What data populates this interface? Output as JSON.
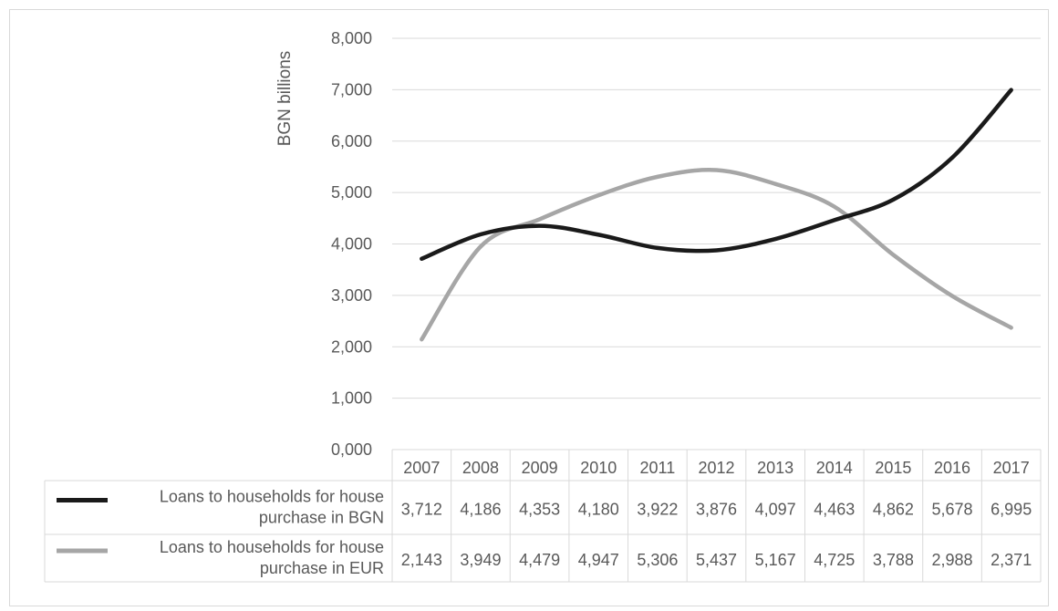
{
  "chart_data": {
    "type": "line",
    "title": "",
    "ylabel": "BGN billions",
    "xlabel": "",
    "ylim": [
      0,
      8000
    ],
    "ytick_step": 1000,
    "ytick_labels": [
      "0,000",
      "1,000",
      "2,000",
      "3,000",
      "4,000",
      "5,000",
      "6,000",
      "7,000",
      "8,000"
    ],
    "grid": true,
    "legend": "data-table-below",
    "categories": [
      "2007",
      "2008",
      "2009",
      "2010",
      "2011",
      "2012",
      "2013",
      "2014",
      "2015",
      "2016",
      "2017"
    ],
    "series": [
      {
        "name": "Loans to households for house purchase in BGN",
        "name_lines": [
          "Loans to households for house",
          "purchase in BGN"
        ],
        "color": "#1a1a1a",
        "values": [
          3712,
          4186,
          4353,
          4180,
          3922,
          3876,
          4097,
          4463,
          4862,
          5678,
          6995
        ],
        "labels": [
          "3,712",
          "4,186",
          "4,353",
          "4,180",
          "3,922",
          "3,876",
          "4,097",
          "4,463",
          "4,862",
          "5,678",
          "6,995"
        ]
      },
      {
        "name": "Loans to households for house purchase in EUR",
        "name_lines": [
          "Loans to households for house",
          "purchase in EUR"
        ],
        "color": "#a6a6a6",
        "values": [
          2143,
          3949,
          4479,
          4947,
          5306,
          5437,
          5167,
          4725,
          3788,
          2988,
          2371
        ],
        "labels": [
          "2,143",
          "3,949",
          "4,479",
          "4,947",
          "5,306",
          "5,437",
          "5,167",
          "4,725",
          "3,788",
          "2,988",
          "2,371"
        ]
      }
    ]
  }
}
